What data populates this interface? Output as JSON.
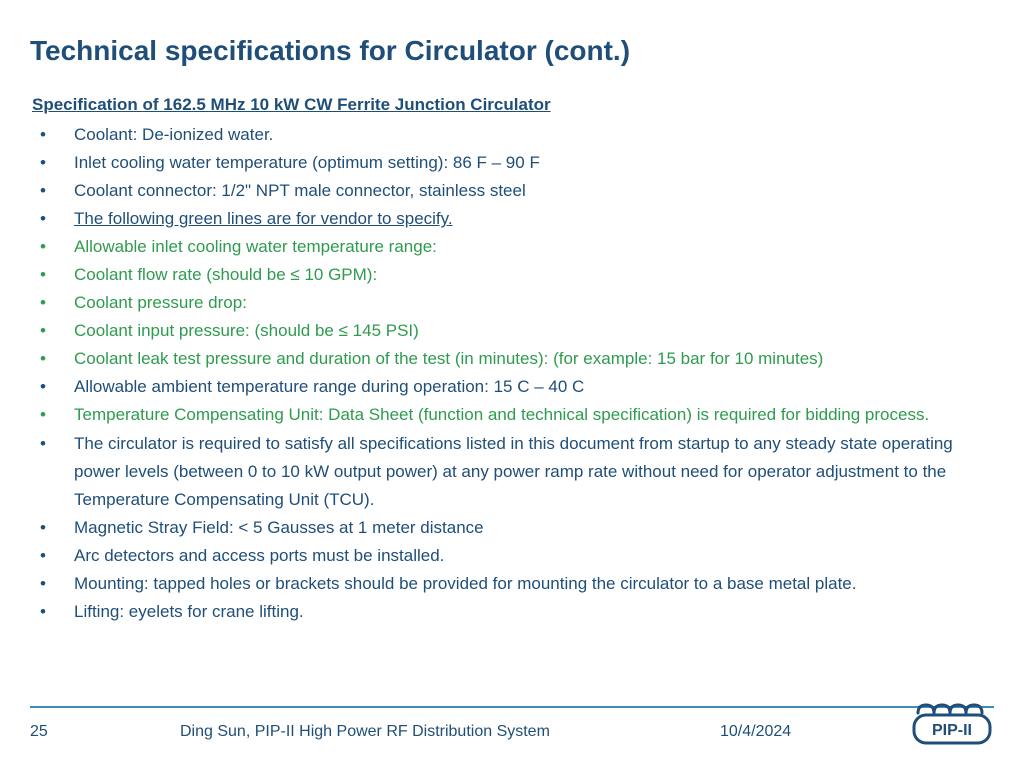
{
  "title": "Technical specifications for Circulator (cont.)",
  "subtitle": "Specification of 162.5 MHz 10 kW CW Ferrite Junction Circulator",
  "items": [
    {
      "text": "Coolant: De-ionized water.",
      "color": "blue"
    },
    {
      "text": "Inlet cooling water temperature (optimum setting): 86 F – 90 F",
      "color": "blue"
    },
    {
      "text": "Coolant connector: 1/2\" NPT male connector, stainless steel",
      "color": "blue"
    },
    {
      "text": "The following green lines are for vendor to specify.",
      "color": "blue",
      "underline": true
    },
    {
      "text": "Allowable inlet cooling water temperature range:",
      "color": "green"
    },
    {
      "text": "Coolant flow rate (should be ≤ 10 GPM):",
      "color": "green"
    },
    {
      "text": "Coolant pressure drop:",
      "color": "green"
    },
    {
      "text": "Coolant input pressure: (should be ≤ 145 PSI)",
      "color": "green"
    },
    {
      "text": "Coolant leak test pressure and duration of the test (in minutes): (for example: 15 bar for 10 minutes)",
      "color": "green"
    },
    {
      "text": "Allowable ambient temperature range during operation: 15 C – 40 C",
      "color": "blue"
    },
    {
      "text": "Temperature Compensating Unit: Data Sheet (function and technical specification) is required for bidding process.",
      "color": "green"
    },
    {
      "text": "The circulator is required to satisfy all specifications listed in this document from startup to any steady state operating power levels (between 0 to 10 kW output power) at any power ramp rate without need for operator adjustment to the Temperature Compensating Unit (TCU).",
      "color": "blue"
    },
    {
      "text": "Magnetic Stray Field: < 5 Gausses at 1 meter distance",
      "color": "blue"
    },
    {
      "text": "Arc detectors and access ports must be installed.",
      "color": "blue"
    },
    {
      "text": "Mounting: tapped holes or brackets should be provided for mounting the circulator to a base metal plate.",
      "color": "blue"
    },
    {
      "text": "Lifting: eyelets for crane lifting.",
      "color": "blue"
    }
  ],
  "footer": {
    "page": "25",
    "center": "Ding Sun, PIP-II High Power RF Distribution System",
    "date": "10/4/2024",
    "logo_text": "PIP-II"
  },
  "colors": {
    "primary": "#1f4e79",
    "green": "#2e9b4f",
    "line": "#3d8bb8",
    "background": "#ffffff"
  }
}
